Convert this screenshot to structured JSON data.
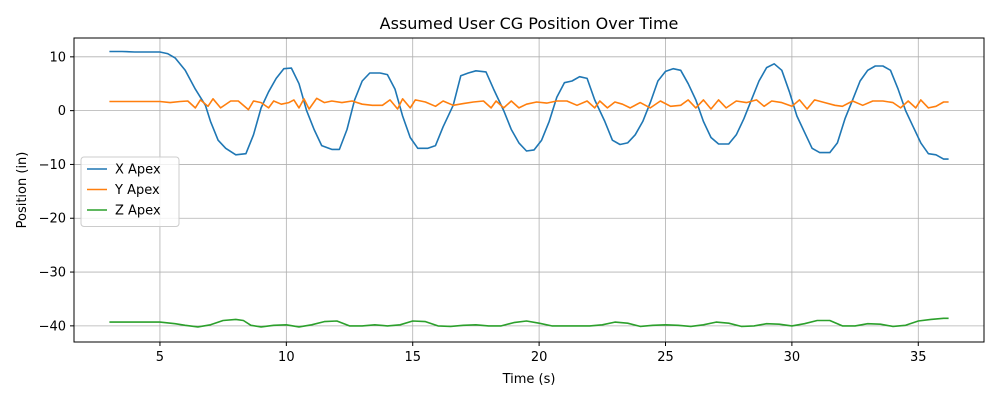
{
  "chart_data": {
    "type": "line",
    "title": "Assumed User CG Position Over Time",
    "xlabel": "Time (s)",
    "ylabel": "Position (in)",
    "xlim": [
      1.6,
      37.6
    ],
    "ylim": [
      -43,
      13.5
    ],
    "xticks": [
      5,
      10,
      15,
      20,
      25,
      30,
      35
    ],
    "yticks": [
      10,
      0,
      -10,
      -20,
      -30,
      -40
    ],
    "grid": true,
    "legend_position": "center-left",
    "series": [
      {
        "name": "X Apex",
        "color": "#1f77b4",
        "points": [
          [
            3.0,
            11.0
          ],
          [
            3.5,
            11.0
          ],
          [
            4.0,
            10.9
          ],
          [
            4.5,
            10.9
          ],
          [
            5.0,
            10.9
          ],
          [
            5.3,
            10.6
          ],
          [
            5.6,
            9.8
          ],
          [
            6.0,
            7.5
          ],
          [
            6.4,
            4.0
          ],
          [
            6.8,
            1.0
          ],
          [
            7.0,
            -2.0
          ],
          [
            7.3,
            -5.5
          ],
          [
            7.6,
            -7.0
          ],
          [
            8.0,
            -8.2
          ],
          [
            8.4,
            -8.0
          ],
          [
            8.7,
            -4.5
          ],
          [
            9.0,
            0.5
          ],
          [
            9.3,
            3.5
          ],
          [
            9.6,
            6.0
          ],
          [
            9.9,
            7.8
          ],
          [
            10.2,
            7.9
          ],
          [
            10.5,
            5.0
          ],
          [
            10.8,
            0.0
          ],
          [
            11.1,
            -3.5
          ],
          [
            11.4,
            -6.5
          ],
          [
            11.8,
            -7.2
          ],
          [
            12.1,
            -7.2
          ],
          [
            12.4,
            -3.5
          ],
          [
            12.7,
            2.0
          ],
          [
            13.0,
            5.5
          ],
          [
            13.3,
            7.0
          ],
          [
            13.7,
            7.0
          ],
          [
            14.0,
            6.7
          ],
          [
            14.3,
            4.0
          ],
          [
            14.6,
            -1.0
          ],
          [
            14.9,
            -5.0
          ],
          [
            15.2,
            -7.0
          ],
          [
            15.6,
            -7.0
          ],
          [
            15.9,
            -6.5
          ],
          [
            16.2,
            -3.0
          ],
          [
            16.6,
            1.0
          ],
          [
            16.9,
            6.5
          ],
          [
            17.2,
            7.0
          ],
          [
            17.5,
            7.4
          ],
          [
            17.9,
            7.2
          ],
          [
            18.2,
            4.0
          ],
          [
            18.6,
            0.0
          ],
          [
            18.9,
            -3.5
          ],
          [
            19.2,
            -6.0
          ],
          [
            19.5,
            -7.5
          ],
          [
            19.8,
            -7.3
          ],
          [
            20.1,
            -5.5
          ],
          [
            20.4,
            -2.0
          ],
          [
            20.7,
            2.5
          ],
          [
            21.0,
            5.2
          ],
          [
            21.3,
            5.5
          ],
          [
            21.6,
            6.3
          ],
          [
            21.9,
            6.0
          ],
          [
            22.2,
            2.0
          ],
          [
            22.6,
            -2.0
          ],
          [
            22.9,
            -5.5
          ],
          [
            23.2,
            -6.3
          ],
          [
            23.5,
            -6.0
          ],
          [
            23.8,
            -4.5
          ],
          [
            24.1,
            -2.0
          ],
          [
            24.4,
            1.5
          ],
          [
            24.7,
            5.5
          ],
          [
            25.0,
            7.3
          ],
          [
            25.3,
            7.8
          ],
          [
            25.6,
            7.5
          ],
          [
            25.9,
            5.0
          ],
          [
            26.2,
            2.0
          ],
          [
            26.5,
            -2.0
          ],
          [
            26.8,
            -5.0
          ],
          [
            27.1,
            -6.2
          ],
          [
            27.5,
            -6.2
          ],
          [
            27.8,
            -4.5
          ],
          [
            28.1,
            -1.5
          ],
          [
            28.4,
            2.0
          ],
          [
            28.7,
            5.5
          ],
          [
            29.0,
            8.0
          ],
          [
            29.3,
            8.7
          ],
          [
            29.6,
            7.5
          ],
          [
            29.9,
            3.5
          ],
          [
            30.2,
            -1.0
          ],
          [
            30.5,
            -4.0
          ],
          [
            30.8,
            -7.0
          ],
          [
            31.1,
            -7.8
          ],
          [
            31.5,
            -7.8
          ],
          [
            31.8,
            -6.0
          ],
          [
            32.1,
            -1.5
          ],
          [
            32.4,
            2.0
          ],
          [
            32.7,
            5.5
          ],
          [
            33.0,
            7.5
          ],
          [
            33.3,
            8.3
          ],
          [
            33.6,
            8.3
          ],
          [
            33.9,
            7.5
          ],
          [
            34.2,
            4.0
          ],
          [
            34.5,
            0.0
          ],
          [
            34.8,
            -3.0
          ],
          [
            35.1,
            -6.0
          ],
          [
            35.4,
            -8.0
          ],
          [
            35.7,
            -8.2
          ],
          [
            36.0,
            -9.0
          ],
          [
            36.2,
            -9.0
          ]
        ]
      },
      {
        "name": "Y Apex",
        "color": "#ff7f0e",
        "points": [
          [
            3.0,
            1.7
          ],
          [
            4.0,
            1.7
          ],
          [
            5.0,
            1.7
          ],
          [
            5.4,
            1.5
          ],
          [
            5.8,
            1.7
          ],
          [
            6.1,
            1.8
          ],
          [
            6.4,
            0.5
          ],
          [
            6.6,
            2.0
          ],
          [
            6.9,
            0.8
          ],
          [
            7.1,
            2.2
          ],
          [
            7.4,
            0.5
          ],
          [
            7.8,
            1.8
          ],
          [
            8.1,
            1.8
          ],
          [
            8.5,
            0.2
          ],
          [
            8.7,
            1.8
          ],
          [
            9.0,
            1.5
          ],
          [
            9.3,
            0.5
          ],
          [
            9.5,
            1.8
          ],
          [
            9.8,
            1.2
          ],
          [
            10.1,
            1.5
          ],
          [
            10.3,
            2.0
          ],
          [
            10.5,
            0.5
          ],
          [
            10.7,
            2.2
          ],
          [
            10.9,
            0.3
          ],
          [
            11.2,
            2.3
          ],
          [
            11.5,
            1.5
          ],
          [
            11.8,
            1.8
          ],
          [
            12.2,
            1.5
          ],
          [
            12.6,
            1.8
          ],
          [
            13.0,
            1.2
          ],
          [
            13.4,
            1.0
          ],
          [
            13.8,
            1.0
          ],
          [
            14.1,
            2.0
          ],
          [
            14.4,
            0.3
          ],
          [
            14.6,
            2.2
          ],
          [
            14.9,
            0.5
          ],
          [
            15.1,
            2.0
          ],
          [
            15.5,
            1.6
          ],
          [
            15.9,
            0.8
          ],
          [
            16.2,
            1.8
          ],
          [
            16.6,
            1.0
          ],
          [
            17.0,
            1.3
          ],
          [
            17.4,
            1.6
          ],
          [
            17.8,
            1.8
          ],
          [
            18.1,
            0.5
          ],
          [
            18.3,
            1.8
          ],
          [
            18.6,
            0.5
          ],
          [
            18.9,
            1.8
          ],
          [
            19.2,
            0.5
          ],
          [
            19.5,
            1.2
          ],
          [
            19.9,
            1.6
          ],
          [
            20.3,
            1.4
          ],
          [
            20.7,
            1.8
          ],
          [
            21.1,
            1.8
          ],
          [
            21.5,
            1.0
          ],
          [
            21.9,
            1.8
          ],
          [
            22.2,
            0.5
          ],
          [
            22.4,
            1.8
          ],
          [
            22.7,
            0.5
          ],
          [
            23.0,
            1.6
          ],
          [
            23.3,
            1.2
          ],
          [
            23.6,
            0.5
          ],
          [
            24.0,
            1.5
          ],
          [
            24.4,
            0.5
          ],
          [
            24.8,
            1.8
          ],
          [
            25.2,
            0.8
          ],
          [
            25.6,
            1.0
          ],
          [
            25.9,
            2.0
          ],
          [
            26.2,
            0.5
          ],
          [
            26.5,
            2.0
          ],
          [
            26.8,
            0.3
          ],
          [
            27.1,
            2.0
          ],
          [
            27.4,
            0.5
          ],
          [
            27.8,
            1.8
          ],
          [
            28.2,
            1.5
          ],
          [
            28.6,
            2.0
          ],
          [
            28.9,
            0.8
          ],
          [
            29.2,
            1.8
          ],
          [
            29.6,
            1.5
          ],
          [
            30.0,
            0.8
          ],
          [
            30.3,
            2.0
          ],
          [
            30.6,
            0.3
          ],
          [
            30.9,
            2.0
          ],
          [
            31.3,
            1.5
          ],
          [
            31.7,
            1.0
          ],
          [
            32.0,
            0.8
          ],
          [
            32.4,
            1.8
          ],
          [
            32.8,
            1.0
          ],
          [
            33.2,
            1.8
          ],
          [
            33.6,
            1.8
          ],
          [
            34.0,
            1.5
          ],
          [
            34.3,
            0.5
          ],
          [
            34.6,
            1.8
          ],
          [
            34.9,
            0.5
          ],
          [
            35.1,
            2.0
          ],
          [
            35.4,
            0.5
          ],
          [
            35.7,
            0.8
          ],
          [
            36.0,
            1.6
          ],
          [
            36.2,
            1.6
          ]
        ]
      },
      {
        "name": "Z Apex",
        "color": "#2ca02c",
        "points": [
          [
            3.0,
            -39.3
          ],
          [
            4.0,
            -39.3
          ],
          [
            5.0,
            -39.3
          ],
          [
            5.6,
            -39.6
          ],
          [
            6.0,
            -39.9
          ],
          [
            6.5,
            -40.2
          ],
          [
            7.0,
            -39.8
          ],
          [
            7.5,
            -39.0
          ],
          [
            8.0,
            -38.8
          ],
          [
            8.3,
            -39.0
          ],
          [
            8.6,
            -39.9
          ],
          [
            9.0,
            -40.2
          ],
          [
            9.5,
            -39.9
          ],
          [
            10.0,
            -39.8
          ],
          [
            10.5,
            -40.2
          ],
          [
            11.0,
            -39.8
          ],
          [
            11.5,
            -39.2
          ],
          [
            12.0,
            -39.1
          ],
          [
            12.5,
            -40.0
          ],
          [
            13.0,
            -40.0
          ],
          [
            13.5,
            -39.8
          ],
          [
            14.0,
            -40.0
          ],
          [
            14.5,
            -39.8
          ],
          [
            15.0,
            -39.1
          ],
          [
            15.5,
            -39.2
          ],
          [
            16.0,
            -40.0
          ],
          [
            16.5,
            -40.1
          ],
          [
            17.0,
            -39.9
          ],
          [
            17.5,
            -39.8
          ],
          [
            18.0,
            -40.0
          ],
          [
            18.5,
            -40.0
          ],
          [
            19.0,
            -39.4
          ],
          [
            19.5,
            -39.1
          ],
          [
            20.0,
            -39.5
          ],
          [
            20.5,
            -40.0
          ],
          [
            21.0,
            -40.0
          ],
          [
            21.5,
            -40.0
          ],
          [
            22.0,
            -40.0
          ],
          [
            22.5,
            -39.8
          ],
          [
            23.0,
            -39.3
          ],
          [
            23.5,
            -39.5
          ],
          [
            24.0,
            -40.1
          ],
          [
            24.5,
            -39.9
          ],
          [
            25.0,
            -39.8
          ],
          [
            25.5,
            -39.9
          ],
          [
            26.0,
            -40.1
          ],
          [
            26.5,
            -39.8
          ],
          [
            27.0,
            -39.3
          ],
          [
            27.5,
            -39.5
          ],
          [
            28.0,
            -40.1
          ],
          [
            28.5,
            -40.0
          ],
          [
            29.0,
            -39.6
          ],
          [
            29.5,
            -39.7
          ],
          [
            30.0,
            -40.0
          ],
          [
            30.5,
            -39.6
          ],
          [
            31.0,
            -39.0
          ],
          [
            31.5,
            -39.0
          ],
          [
            32.0,
            -40.0
          ],
          [
            32.5,
            -40.0
          ],
          [
            33.0,
            -39.6
          ],
          [
            33.5,
            -39.7
          ],
          [
            34.0,
            -40.1
          ],
          [
            34.5,
            -39.9
          ],
          [
            35.0,
            -39.1
          ],
          [
            35.5,
            -38.8
          ],
          [
            36.0,
            -38.6
          ],
          [
            36.2,
            -38.6
          ]
        ]
      }
    ]
  }
}
